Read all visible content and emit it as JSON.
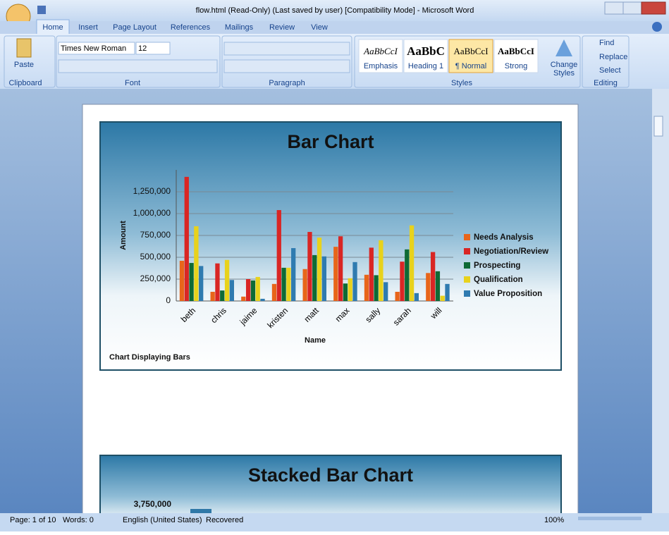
{
  "window": {
    "title": "flow.html (Read-Only) (Last saved by user) [Compatibility Mode] - Microsoft Word"
  },
  "ribbon": {
    "tabs": [
      "Home",
      "Insert",
      "Page Layout",
      "References",
      "Mailings",
      "Review",
      "View"
    ],
    "clipboard": {
      "paste": "Paste"
    },
    "font": {
      "name": "Times New Roman",
      "size": "12"
    },
    "styles": {
      "gallery": [
        {
          "sample": "AaBbCcI",
          "name": "Emphasis"
        },
        {
          "sample": "AaBbC",
          "name": "Heading 1"
        },
        {
          "sample": "AaBbCcI",
          "name": "¶ Normal"
        },
        {
          "sample": "AaBbCcI",
          "name": "Strong"
        }
      ],
      "change_1": "Change",
      "change_2": "Styles"
    },
    "editing": [
      "Find",
      "Replace",
      "Select"
    ],
    "groups": [
      "Clipboard",
      "Font",
      "Paragraph",
      "Styles",
      "Editing"
    ]
  },
  "chart_data": [
    {
      "type": "bar",
      "title": "Bar Chart",
      "x_label": "Name",
      "y_label": "Amount",
      "footnote": "Chart Displaying Bars",
      "categories": [
        "beth",
        "chris",
        "jaime",
        "kristen",
        "matt",
        "max",
        "sally",
        "sarah",
        "will"
      ],
      "series": [
        {
          "name": "Needs Analysis",
          "color": "#e8651a",
          "values": [
            460000,
            105000,
            50000,
            195000,
            365000,
            620000,
            300000,
            105000,
            320000
          ]
        },
        {
          "name": "Negotiation/Review",
          "color": "#d92624",
          "values": [
            1420000,
            430000,
            250000,
            1040000,
            790000,
            740000,
            610000,
            450000,
            560000
          ]
        },
        {
          "name": "Prospecting",
          "color": "#0e6a35",
          "values": [
            435000,
            120000,
            235000,
            380000,
            525000,
            200000,
            295000,
            590000,
            340000
          ]
        },
        {
          "name": "Qualification",
          "color": "#e8d21c",
          "values": [
            855000,
            470000,
            275000,
            380000,
            725000,
            260000,
            695000,
            865000,
            60000
          ]
        },
        {
          "name": "Value Proposition",
          "color": "#2f7bb0",
          "values": [
            400000,
            240000,
            25000,
            605000,
            510000,
            445000,
            215000,
            90000,
            195000
          ]
        }
      ],
      "ylim": [
        0,
        1500000
      ],
      "yticks": [
        0,
        {
          "value": 250000,
          "label": "250,000"
        },
        {
          "value": 500000,
          "label": "500,000"
        },
        {
          "value": 750000,
          "label": "750,000"
        },
        {
          "value": 1000000,
          "label": "1,000,000"
        },
        {
          "value": 1250000,
          "label": "1,250,000"
        }
      ],
      "grid": true,
      "legend": "right"
    },
    {
      "type": "bar",
      "title": "Stacked Bar Chart",
      "yticks": [
        {
          "value": 3750000,
          "label": "3,750,000"
        }
      ]
    }
  ],
  "status": {
    "page": "Page: 1 of 10",
    "words": "Words: 0",
    "language": "English (United States)",
    "state": "Recovered",
    "zoom": "100%"
  }
}
